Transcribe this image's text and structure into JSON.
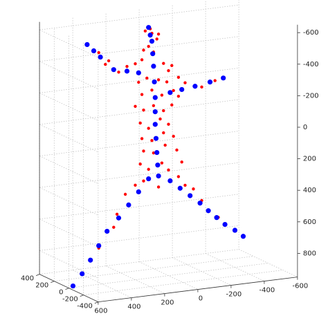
{
  "chart_data": {
    "type": "scatter3d",
    "xlim": [
      600,
      -600
    ],
    "xticks": [
      600,
      400,
      200,
      0,
      -200,
      -400,
      -600
    ],
    "ylim": [
      400,
      -400
    ],
    "yticks": [
      400,
      200,
      0,
      -200,
      -400
    ],
    "zlim": [
      -650,
      950
    ],
    "zticks": [
      -600,
      -400,
      -200,
      0,
      200,
      400,
      600,
      800
    ],
    "grid": true,
    "series": [
      {
        "color": "#ff0000",
        "x": [
          100,
          140,
          70,
          120,
          90,
          150,
          60,
          110,
          200,
          250,
          30,
          -20,
          160,
          0,
          300,
          -60,
          -100,
          380,
          180,
          130,
          60,
          10,
          160,
          100,
          40,
          -30,
          200,
          150,
          90,
          30,
          -20,
          -60,
          170,
          120,
          50,
          0,
          160,
          100,
          30,
          -30,
          150,
          90,
          20,
          -50,
          -80,
          170,
          120,
          40,
          0,
          200,
          260,
          310,
          -60,
          -150,
          -200,
          -300,
          330,
          420,
          150,
          60,
          -100,
          420,
          360,
          -200,
          -280
        ],
        "values": [
          -600,
          -620,
          -560,
          -520,
          -480,
          -500,
          -590,
          -630,
          -420,
          -410,
          -400,
          -380,
          -440,
          -350,
          -380,
          -300,
          -260,
          -440,
          -300,
          -320,
          -300,
          -280,
          -220,
          -240,
          -200,
          -220,
          -150,
          -120,
          -140,
          -100,
          -130,
          -180,
          -40,
          0,
          -50,
          -10,
          60,
          80,
          40,
          70,
          140,
          160,
          120,
          160,
          240,
          220,
          260,
          230,
          280,
          350,
          400,
          520,
          330,
          420,
          500,
          620,
          600,
          720,
          330,
          380,
          390,
          -520,
          -460,
          -220,
          -250
        ]
      },
      {
        "color": "#0000ff",
        "x": [
          120,
          110,
          100,
          95,
          90,
          85,
          80,
          80,
          80,
          75,
          70,
          65,
          60,
          180,
          250,
          330,
          410,
          450,
          490,
          -10,
          -80,
          -160,
          -250,
          -330,
          120,
          180,
          240,
          300,
          370,
          420,
          470,
          520,
          575,
          -10,
          -70,
          -130,
          -190,
          -240,
          -290,
          -340,
          -400,
          -450
        ],
        "values": [
          -640,
          -590,
          -550,
          -470,
          -390,
          -290,
          -190,
          -100,
          -20,
          70,
          160,
          240,
          310,
          -360,
          -380,
          -400,
          -490,
          -535,
          -580,
          -210,
          -220,
          -230,
          -245,
          -260,
          320,
          395,
          470,
          545,
          620,
          705,
          790,
          870,
          940,
          350,
          405,
          460,
          515,
          570,
          620,
          670,
          715,
          760
        ]
      }
    ]
  }
}
